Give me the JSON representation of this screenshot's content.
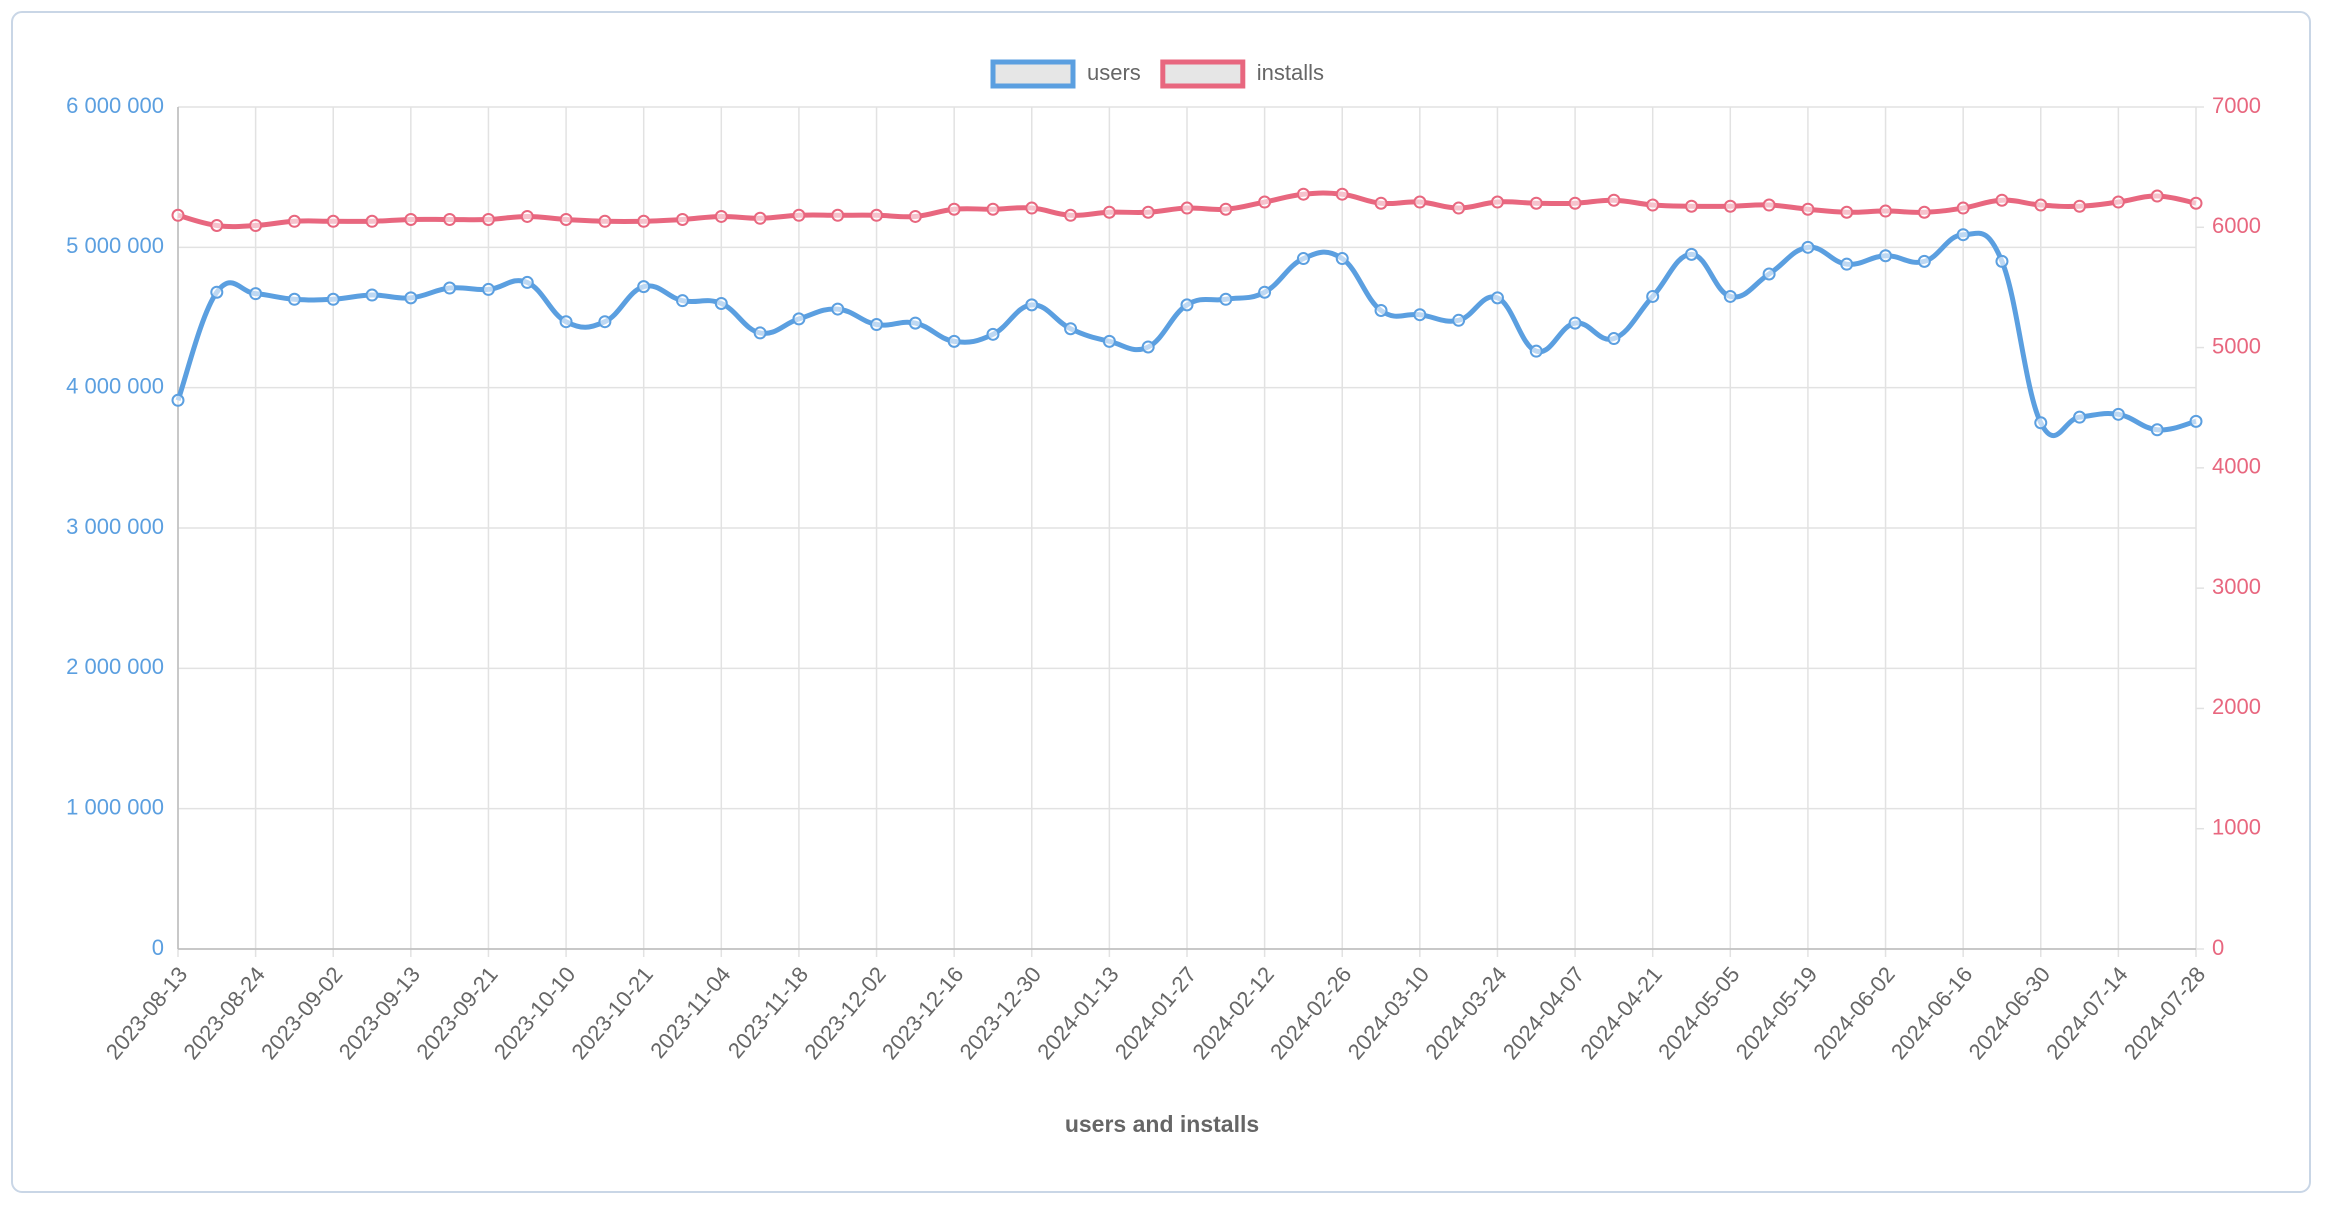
{
  "chart_data": {
    "type": "line",
    "xlabel": "users and installs",
    "categories": [
      "2023-08-13",
      null,
      "2023-08-24",
      null,
      "2023-09-02",
      null,
      "2023-09-13",
      null,
      "2023-09-21",
      null,
      "2023-10-10",
      null,
      "2023-10-21",
      null,
      "2023-11-04",
      null,
      "2023-11-18",
      null,
      "2023-12-02",
      null,
      "2023-12-16",
      null,
      "2023-12-30",
      null,
      "2024-01-13",
      null,
      "2024-01-27",
      null,
      "2024-02-12",
      null,
      "2024-02-26",
      null,
      "2024-03-10",
      null,
      "2024-03-24",
      null,
      "2024-04-07",
      null,
      "2024-04-21",
      null,
      "2024-05-05",
      null,
      "2024-05-19",
      null,
      "2024-06-02",
      null,
      "2024-06-16",
      null,
      "2024-06-30",
      null,
      "2024-07-14",
      null,
      "2024-07-28"
    ],
    "series": [
      {
        "name": "users",
        "color": "#5b9fe0",
        "axis": "y",
        "values": [
          3910000,
          4680000,
          4670000,
          4630000,
          4630000,
          4660000,
          4640000,
          4710000,
          4700000,
          4750000,
          4470000,
          4470000,
          4720000,
          4620000,
          4600000,
          4390000,
          4490000,
          4560000,
          4450000,
          4460000,
          4330000,
          4380000,
          4590000,
          4420000,
          4330000,
          4290000,
          4590000,
          4630000,
          4680000,
          4920000,
          4920000,
          4550000,
          4520000,
          4480000,
          4640000,
          4260000,
          4460000,
          4350000,
          4650000,
          4950000,
          4650000,
          4810000,
          5000000,
          4880000,
          4940000,
          4900000,
          5090000,
          4900000,
          3750000,
          3790000,
          3810000,
          3700000,
          3760000
        ]
      },
      {
        "name": "installs",
        "color": "#e8677f",
        "axis": "y2",
        "values": [
          6100,
          6015,
          6015,
          6050,
          6050,
          6050,
          6065,
          6065,
          6065,
          6090,
          6065,
          6050,
          6050,
          6065,
          6090,
          6075,
          6100,
          6100,
          6100,
          6090,
          6150,
          6150,
          6160,
          6100,
          6125,
          6125,
          6160,
          6150,
          6210,
          6275,
          6275,
          6200,
          6210,
          6160,
          6210,
          6200,
          6200,
          6225,
          6185,
          6175,
          6175,
          6185,
          6150,
          6125,
          6135,
          6125,
          6160,
          6225,
          6185,
          6175,
          6210,
          6260,
          6200
        ]
      }
    ],
    "ylim": [
      0,
      6000000
    ],
    "yticks": [
      0,
      {
        "value": 1000000,
        "label": "1 000 000"
      },
      {
        "value": 2000000,
        "label": "2 000 000"
      },
      {
        "value": 3000000,
        "label": "3 000 000"
      },
      {
        "value": 4000000,
        "label": "4 000 000"
      },
      {
        "value": 5000000,
        "label": "5 000 000"
      },
      {
        "value": 6000000,
        "label": "6 000 000"
      }
    ],
    "y2lim": [
      0,
      7000
    ],
    "y2ticks": [
      0,
      1000,
      2000,
      3000,
      4000,
      5000,
      6000,
      7000
    ],
    "grid": true,
    "legend": "top"
  }
}
